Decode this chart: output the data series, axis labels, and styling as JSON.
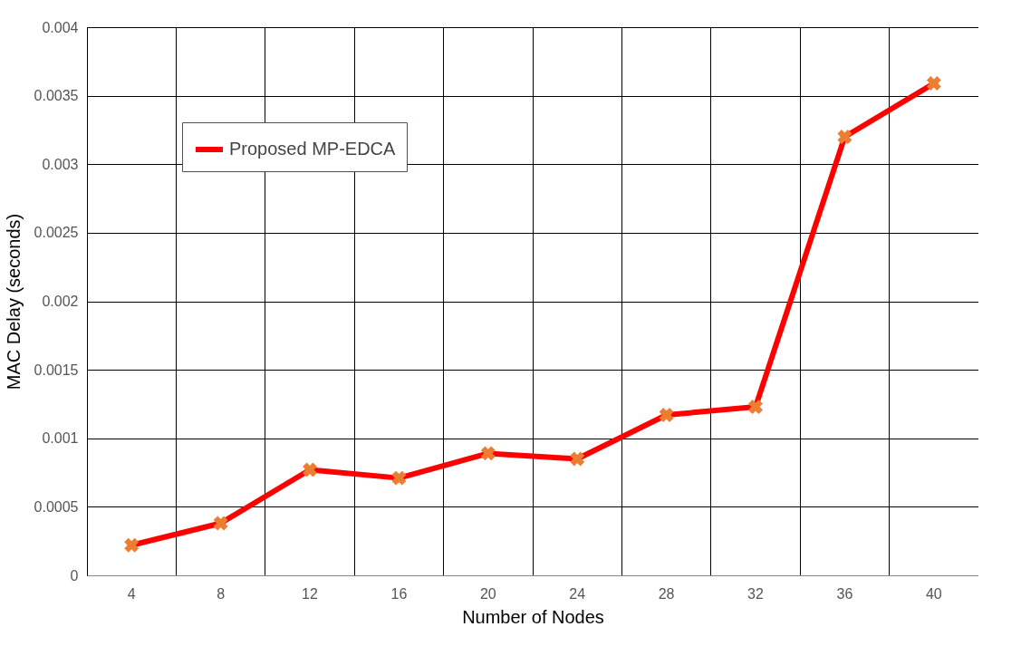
{
  "chart_data": {
    "type": "line",
    "xlabel": "Number of Nodes",
    "ylabel": "MAC Delay (seconds)",
    "categories": [
      "4",
      "8",
      "12",
      "16",
      "20",
      "24",
      "28",
      "32",
      "36",
      "40"
    ],
    "series": [
      {
        "name": "Proposed MP-EDCA",
        "color": "#ff0000",
        "values": [
          0.00022,
          0.00038,
          0.00077,
          0.00071,
          0.00089,
          0.00085,
          0.00117,
          0.00123,
          0.0032,
          0.00359
        ]
      }
    ],
    "ylim": [
      0,
      0.004
    ],
    "yticks": [
      0,
      0.0005,
      0.001,
      0.0015,
      0.002,
      0.0025,
      0.003,
      0.0035,
      0.004
    ],
    "grid": true,
    "legend": "top left",
    "marker": "cross",
    "line_style": "solid"
  }
}
